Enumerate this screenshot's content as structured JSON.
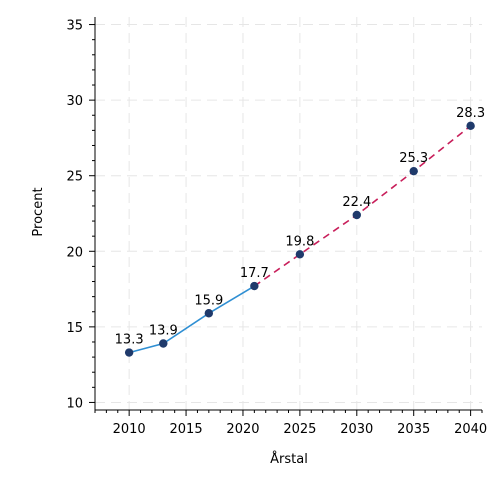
{
  "chart_data": {
    "type": "line",
    "xlabel": "Årstal",
    "ylabel": "Procent",
    "xlim": [
      2007,
      2041
    ],
    "ylim": [
      9.5,
      35.5
    ],
    "x_ticks": [
      2010,
      2015,
      2020,
      2025,
      2030,
      2035,
      2040
    ],
    "y_ticks": [
      10,
      15,
      20,
      25,
      30,
      35
    ],
    "grid": true,
    "points": [
      {
        "x": 2010,
        "y": 13.3,
        "label": "13.3"
      },
      {
        "x": 2013,
        "y": 13.9,
        "label": "13.9"
      },
      {
        "x": 2017,
        "y": 15.9,
        "label": "15.9"
      },
      {
        "x": 2021,
        "y": 17.7,
        "label": "17.7"
      },
      {
        "x": 2025,
        "y": 19.8,
        "label": "19.8"
      },
      {
        "x": 2030,
        "y": 22.4,
        "label": "22.4"
      },
      {
        "x": 2035,
        "y": 25.3,
        "label": "25.3"
      },
      {
        "x": 2040,
        "y": 28.3,
        "label": "28.3"
      }
    ],
    "segments": [
      {
        "from_x": 2010,
        "to_x": 2021,
        "style": "solid",
        "color": "#2f8fd3"
      },
      {
        "from_x": 2021,
        "to_x": 2040,
        "style": "dashed",
        "color": "#c81e5a"
      }
    ],
    "marker_color": "#1f3a6b"
  }
}
